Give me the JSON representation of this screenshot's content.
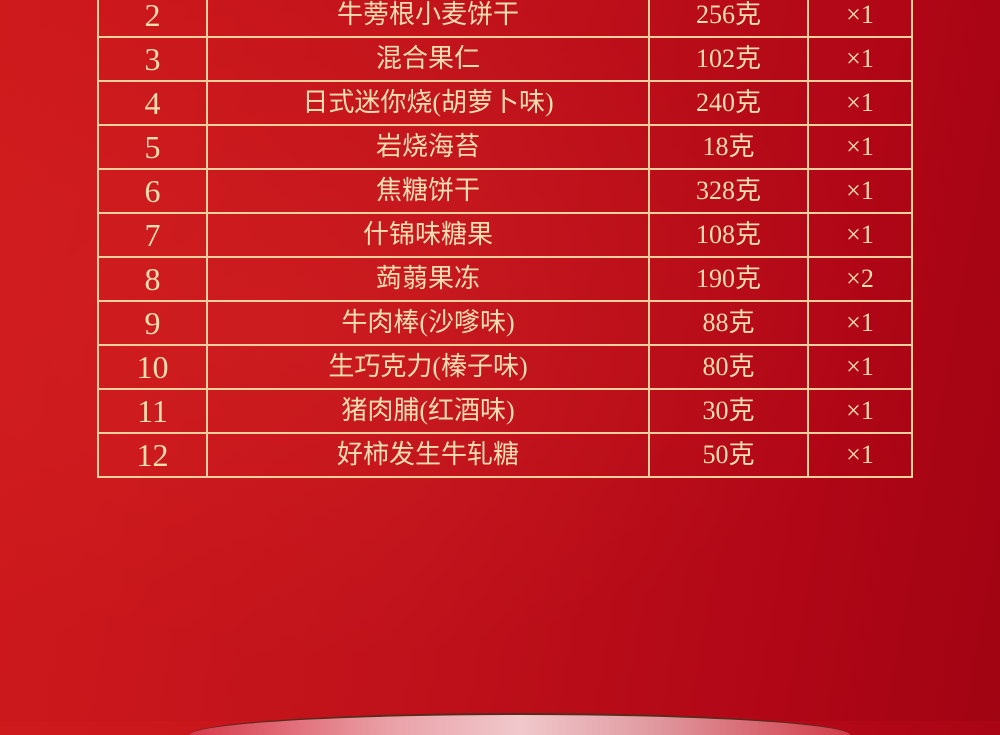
{
  "colors": {
    "background": "#c0121b",
    "text": "#f7ddb0",
    "grid": "#f2cf9c"
  },
  "table": {
    "rows": [
      {
        "no": "2",
        "name": "牛蒡根小麦饼干",
        "weight": "256克",
        "qty": "×1"
      },
      {
        "no": "3",
        "name": "混合果仁",
        "weight": "102克",
        "qty": "×1"
      },
      {
        "no": "4",
        "name": "日式迷你烧(胡萝卜味)",
        "weight": "240克",
        "qty": "×1"
      },
      {
        "no": "5",
        "name": "岩烧海苔",
        "weight": "18克",
        "qty": "×1"
      },
      {
        "no": "6",
        "name": "焦糖饼干",
        "weight": "328克",
        "qty": "×1"
      },
      {
        "no": "7",
        "name": "什锦味糖果",
        "weight": "108克",
        "qty": "×1"
      },
      {
        "no": "8",
        "name": "蒟蒻果冻",
        "weight": "190克",
        "qty": "×2"
      },
      {
        "no": "9",
        "name": "牛肉棒(沙嗲味)",
        "weight": "88克",
        "qty": "×1"
      },
      {
        "no": "10",
        "name": "生巧克力(榛子味)",
        "weight": "80克",
        "qty": "×1"
      },
      {
        "no": "11",
        "name": "猪肉脯(红酒味)",
        "weight": "30克",
        "qty": "×1"
      },
      {
        "no": "12",
        "name": "好柿发生牛轧糖",
        "weight": "50克",
        "qty": "×1"
      }
    ]
  }
}
